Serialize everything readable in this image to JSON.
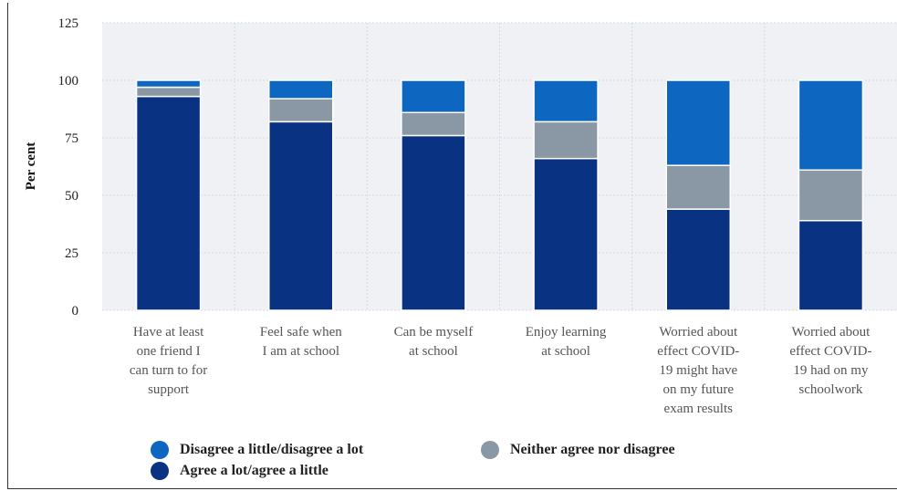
{
  "chart_data": {
    "type": "bar",
    "stacked": true,
    "ylabel": "Per cent",
    "xlabel": "",
    "title": "",
    "ylim": [
      0,
      125
    ],
    "yticks": [
      0,
      25,
      50,
      75,
      100,
      125
    ],
    "grid": true,
    "legend_position": "bottom",
    "categories": [
      [
        "Have at least",
        "one friend I",
        "can turn to for",
        "support"
      ],
      [
        "Feel safe when",
        "I am at school"
      ],
      [
        "Can be myself",
        "at school"
      ],
      [
        "Enjoy learning",
        "at school"
      ],
      [
        "Worried about",
        "effect COVID-",
        "19 might have",
        "on my future",
        "exam results"
      ],
      [
        "Worried about",
        "effect COVID-",
        "19 had on my",
        "schoolwork"
      ]
    ],
    "series": [
      {
        "name": "Agree a lot/agree a little",
        "color": "#0a3282",
        "values": [
          93,
          82,
          76,
          66,
          44,
          39
        ]
      },
      {
        "name": "Neither agree nor disagree",
        "color": "#8a97a4",
        "values": [
          4,
          10,
          10,
          16,
          19,
          22
        ]
      },
      {
        "name": "Disagree a little/disagree a lot",
        "color": "#0d66bf",
        "values": [
          3,
          8,
          14,
          18,
          37,
          39
        ]
      }
    ],
    "legend_order": [
      2,
      1,
      0
    ]
  },
  "colors": {
    "plot_background": "#eff1f4",
    "grid": "#d6dae0"
  }
}
